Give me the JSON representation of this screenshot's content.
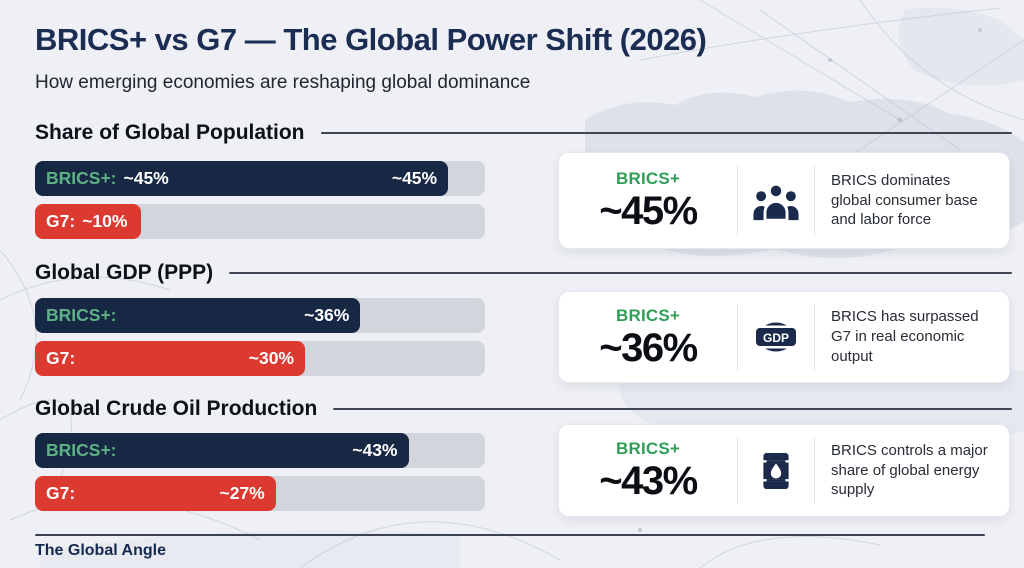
{
  "header": {
    "title": "BRICS+ vs G7 — The Global Power Shift (2026)",
    "subtitle": "How emerging economies are reshaping global dominance"
  },
  "colors": {
    "navy": "#172845",
    "red": "#dc3a30",
    "green_bar_label": "#5fb085",
    "white_label": "#ffffff",
    "green_card": "#2f9e57",
    "track": "#d2d5db",
    "title_navy": "#1b2d52",
    "background": "#eef0f5"
  },
  "sections": [
    {
      "heading": "Share of Global Population",
      "bars": [
        {
          "label": "BRICS+:",
          "inline_value": "~45%",
          "end_value": "~45%",
          "fill_pct": 91.8,
          "color": "#172845",
          "label_color": "#5fb085"
        },
        {
          "label": "G7:",
          "inline_value": "~10%",
          "end_value": "",
          "fill_pct": 23.5,
          "color": "#dc3a30",
          "label_color": "#ffffff"
        }
      ],
      "card": {
        "group": "BRICS+",
        "value": "~45%",
        "icon": "people-icon",
        "description": "BRICS dominates global consumer base and labor force"
      }
    },
    {
      "heading": "Global GDP (PPP)",
      "bars": [
        {
          "label": "BRICS+:",
          "inline_value": "",
          "end_value": "~36%",
          "fill_pct": 72.3,
          "color": "#172845",
          "label_color": "#5fb085"
        },
        {
          "label": "G7:",
          "inline_value": "",
          "end_value": "~30%",
          "fill_pct": 60,
          "color": "#dc3a30",
          "label_color": "#ffffff"
        }
      ],
      "card": {
        "group": "BRICS+",
        "value": "~36%",
        "icon": "gdp-badge-icon",
        "description": "BRICS has surpassed G7 in real economic output"
      }
    },
    {
      "heading": "Global Crude Oil Production",
      "bars": [
        {
          "label": "BRICS+:",
          "inline_value": "",
          "end_value": "~43%",
          "fill_pct": 83,
          "color": "#172845",
          "label_color": "#5fb085"
        },
        {
          "label": "G7:",
          "inline_value": "",
          "end_value": "~27%",
          "fill_pct": 53.5,
          "color": "#dc3a30",
          "label_color": "#ffffff"
        }
      ],
      "card": {
        "group": "BRICS+",
        "value": "~43%",
        "icon": "oil-barrel-icon",
        "description": "BRICS controls a major share of global energy supply"
      }
    }
  ],
  "footer": {
    "brand": "The Global Angle"
  },
  "chart_data": {
    "type": "bar",
    "orientation": "horizontal",
    "unit": "%",
    "note": "all values approximate (~), bars not drawn to 0-100 scale",
    "categories": [
      "Share of Global Population",
      "Global GDP (PPP)",
      "Global Crude Oil Production"
    ],
    "series": [
      {
        "name": "BRICS+",
        "values": [
          45,
          36,
          43
        ],
        "color": "#172845"
      },
      {
        "name": "G7",
        "values": [
          10,
          30,
          27
        ],
        "color": "#dc3a30"
      }
    ],
    "legend_position": "in-bar labels",
    "grid": false
  }
}
